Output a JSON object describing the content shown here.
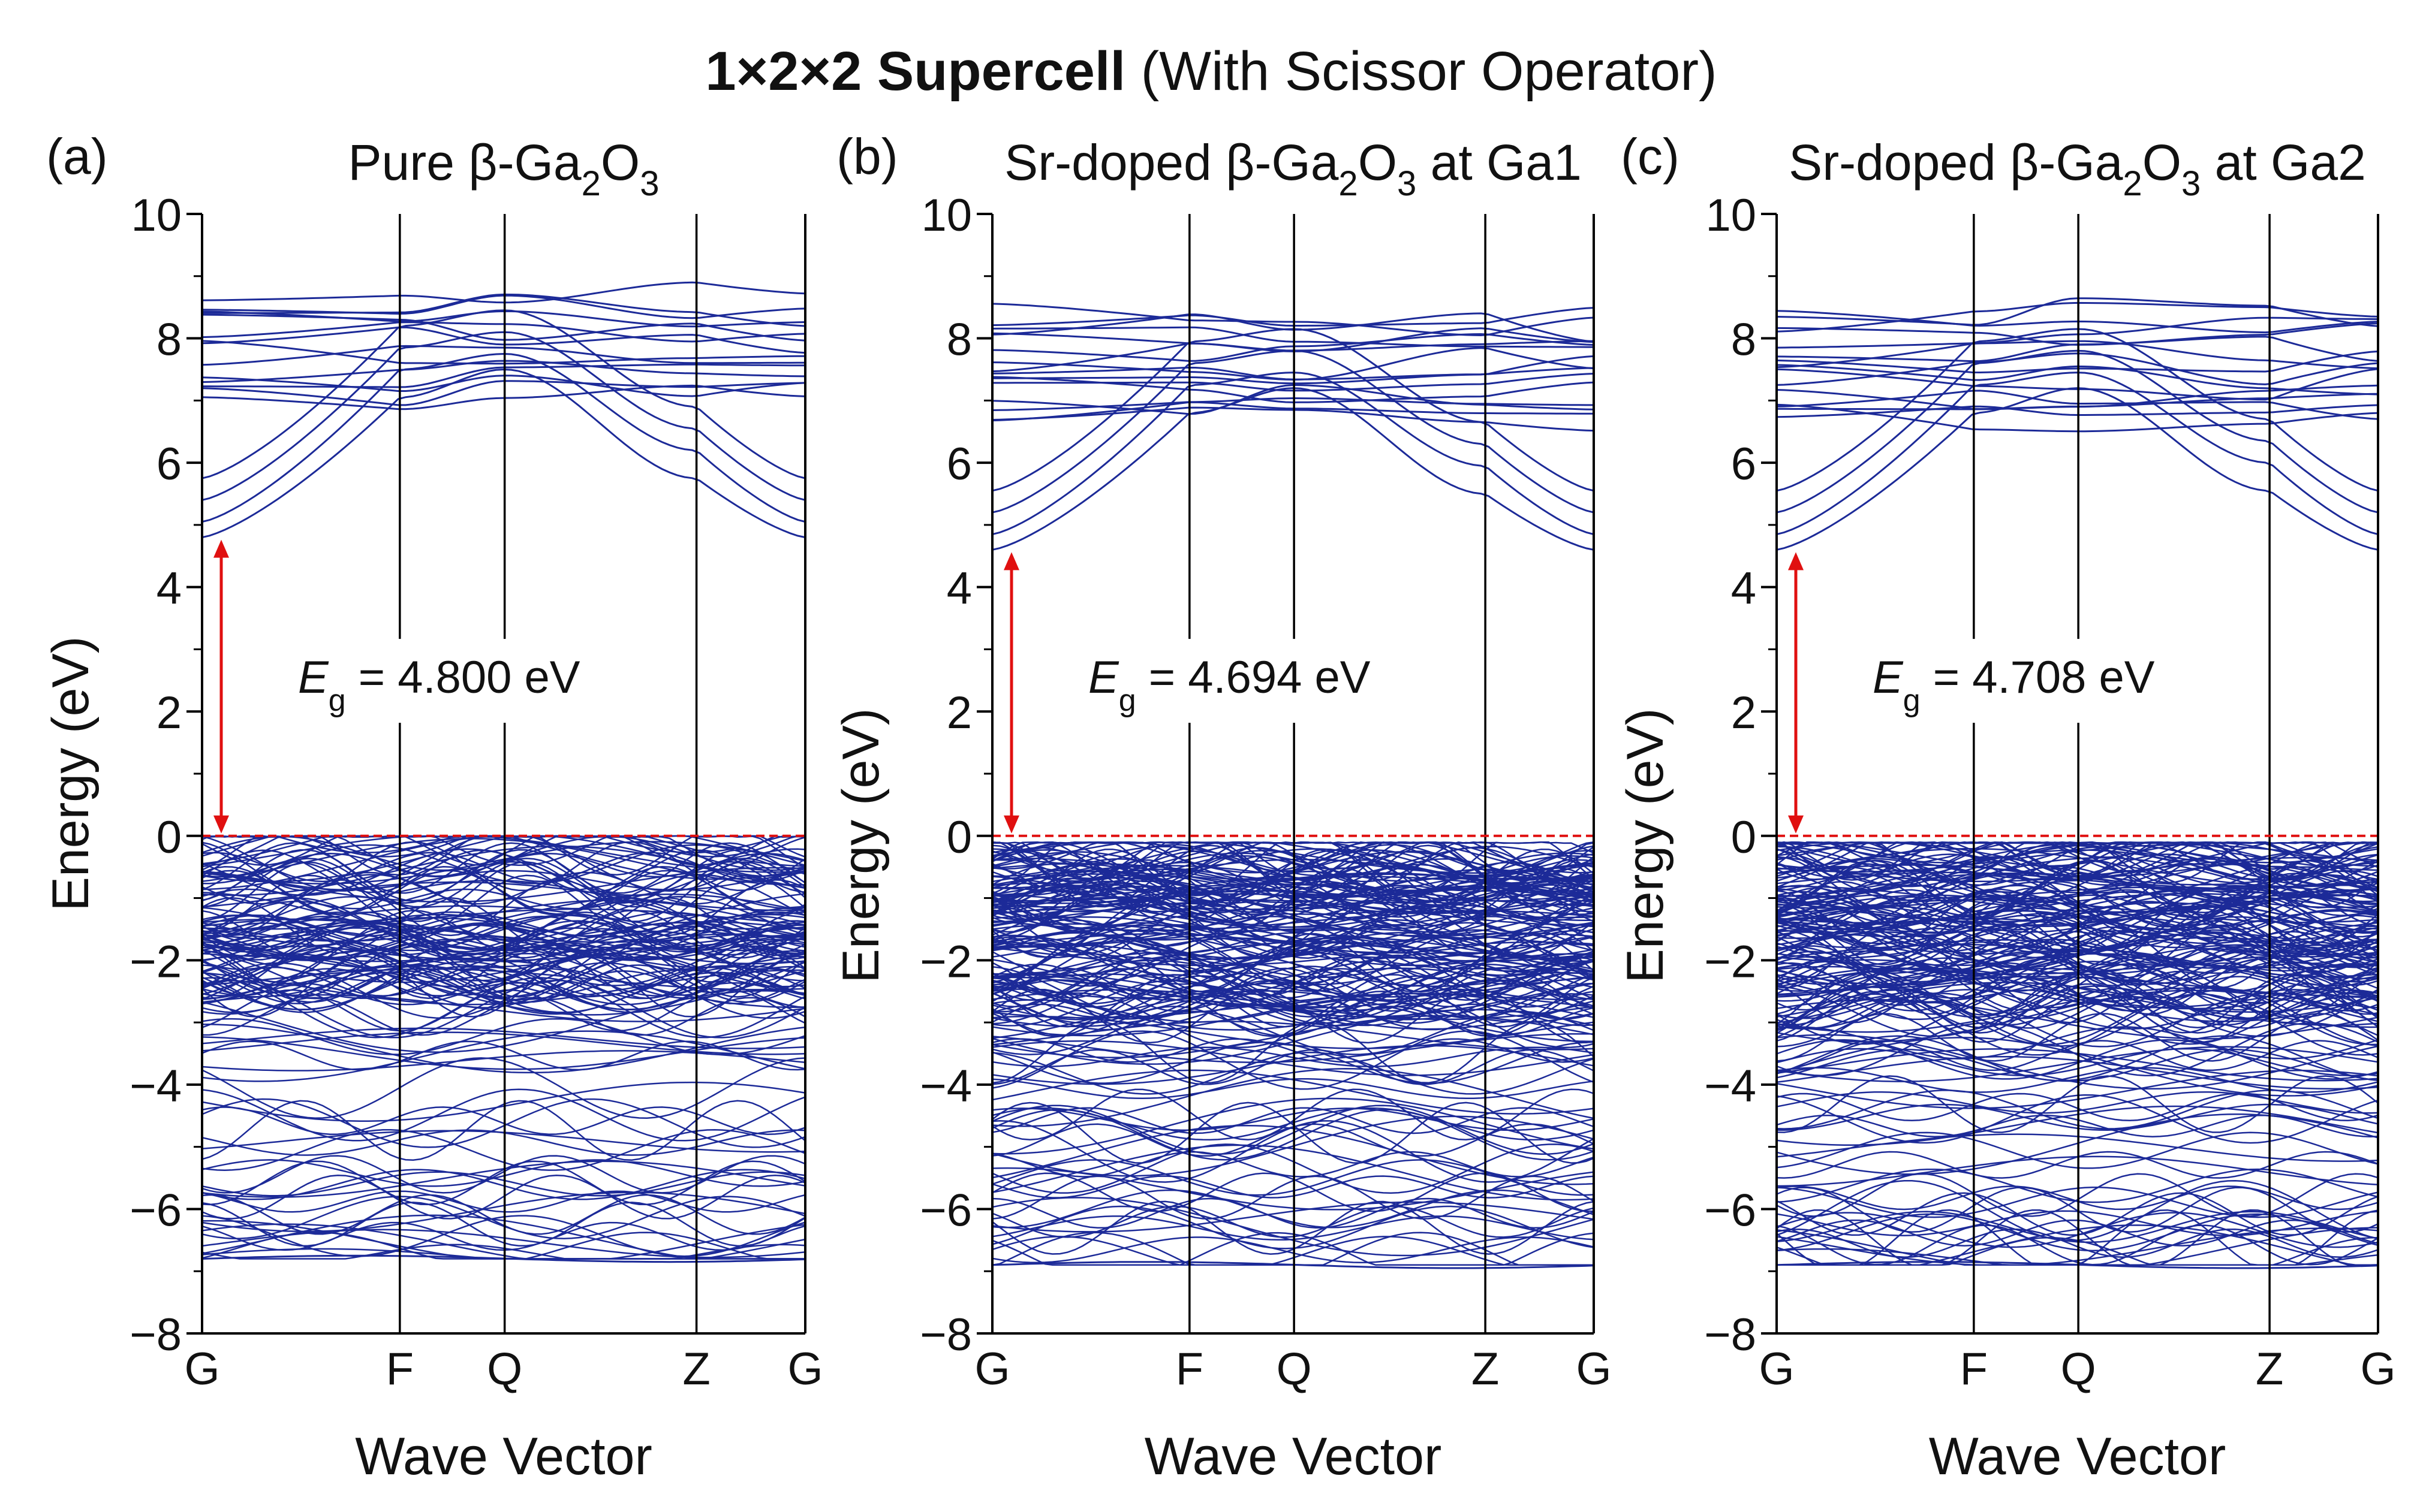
{
  "figure": {
    "title_bold": "1×2×2 Supercell",
    "title_rest": " (With Scissor Operator)"
  },
  "colors": {
    "bands": "#1c2a98",
    "gap_arrow": "#e01010",
    "fermi_line": "#e01010",
    "axis": "#000000"
  },
  "chart_data": [
    {
      "type": "line",
      "panel_label": "(a)",
      "title": "Pure β-Ga2O3",
      "title_parts": {
        "before": "Pure β-Ga",
        "sub1": "2",
        "mid": "O",
        "sub2": "3",
        "after": ""
      },
      "xlabel": "Wave Vector",
      "ylabel": "Energy (eV)",
      "ylim": [
        -8,
        10
      ],
      "yticks": [
        -8,
        -6,
        -4,
        -2,
        0,
        2,
        4,
        6,
        8,
        10
      ],
      "ytick_labels": [
        "−8",
        "−6",
        "−4",
        "−2",
        "0",
        "2",
        "4",
        "6",
        "8",
        "10"
      ],
      "kpoints": [
        "G",
        "F",
        "Q",
        "Z",
        "G"
      ],
      "kpoint_positions": [
        0,
        1,
        1.53,
        2.5,
        3.05
      ],
      "fermi_level": 0,
      "band_gap": 4.8,
      "annotation": {
        "symbol": "E",
        "subscript": "g",
        "text": " = 4.800 eV"
      },
      "conduction_bands": {
        "cbm": 4.8,
        "energy_at_kpoints": [
          4.8,
          7.05,
          7.5,
          5.75,
          4.8
        ],
        "upper_band_range": [
          6.9,
          8.8
        ],
        "upper_band_count": 14
      },
      "valence_bands": {
        "vbm": 0,
        "range": [
          -6.8,
          0
        ],
        "band_count": 150,
        "denser_near": [
          -2.5,
          0
        ]
      }
    },
    {
      "type": "line",
      "panel_label": "(b)",
      "title": "Sr-doped β-Ga2O3 at Ga1",
      "title_parts": {
        "before": "Sr-doped β-Ga",
        "sub1": "2",
        "mid": "O",
        "sub2": "3",
        "after": " at Ga1"
      },
      "xlabel": "Wave Vector",
      "ylabel": "Energy (eV)",
      "ylim": [
        -8,
        10
      ],
      "yticks": [
        -8,
        -6,
        -4,
        -2,
        0,
        2,
        4,
        6,
        8,
        10
      ],
      "ytick_labels": [
        "−8",
        "−6",
        "−4",
        "−2",
        "0",
        "2",
        "4",
        "6",
        "8",
        "10"
      ],
      "kpoints": [
        "G",
        "F",
        "Q",
        "Z",
        "G"
      ],
      "kpoint_positions": [
        0,
        1,
        1.53,
        2.5,
        3.05
      ],
      "fermi_level": 0,
      "band_gap": 4.694,
      "annotation": {
        "symbol": "E",
        "subscript": "g",
        "text": " = 4.694 eV"
      },
      "conduction_bands": {
        "cbm": 4.6,
        "energy_at_kpoints": [
          4.6,
          6.8,
          7.2,
          5.5,
          4.6
        ],
        "upper_band_range": [
          6.6,
          8.5
        ],
        "upper_band_count": 16
      },
      "valence_bands": {
        "vbm": 0,
        "range": [
          -6.9,
          -0.1
        ],
        "band_count": 200,
        "denser_near": [
          -3,
          -0.2
        ]
      }
    },
    {
      "type": "line",
      "panel_label": "(c)",
      "title": "Sr-doped β-Ga2O3 at Ga2",
      "title_parts": {
        "before": "Sr-doped β-Ga",
        "sub1": "2",
        "mid": "O",
        "sub2": "3",
        "after": " at Ga2"
      },
      "xlabel": "Wave Vector",
      "ylabel": "Energy (eV)",
      "ylim": [
        -8,
        10
      ],
      "yticks": [
        -8,
        -6,
        -4,
        -2,
        0,
        2,
        4,
        6,
        8,
        10
      ],
      "ytick_labels": [
        "−8",
        "−6",
        "−4",
        "−2",
        "0",
        "2",
        "4",
        "6",
        "8",
        "10"
      ],
      "kpoints": [
        "G",
        "F",
        "Q",
        "Z",
        "G"
      ],
      "kpoint_positions": [
        0,
        1,
        1.53,
        2.5,
        3.05
      ],
      "fermi_level": 0,
      "band_gap": 4.708,
      "annotation": {
        "symbol": "E",
        "subscript": "g",
        "text": " = 4.708 eV"
      },
      "conduction_bands": {
        "cbm": 4.6,
        "energy_at_kpoints": [
          4.6,
          6.8,
          7.2,
          5.55,
          4.6
        ],
        "upper_band_range": [
          6.6,
          8.5
        ],
        "upper_band_count": 16
      },
      "valence_bands": {
        "vbm": 0,
        "range": [
          -6.9,
          -0.1
        ],
        "band_count": 200,
        "denser_near": [
          -3,
          -0.2
        ]
      }
    }
  ]
}
